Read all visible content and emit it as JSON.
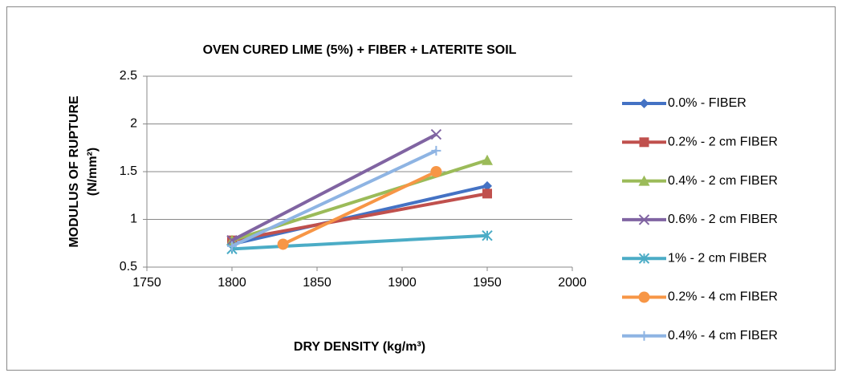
{
  "chart_data": {
    "type": "line",
    "title": "OVEN CURED LIME (5%) + FIBER + LATERITE SOIL",
    "x_label": "DRY DENSITY (kg/m³)",
    "y_label": [
      "MODULUS OF RUPTURE",
      "(N/mm²)"
    ],
    "xlim": [
      1750,
      2000
    ],
    "xticks": [
      1750,
      1800,
      1850,
      1900,
      1950,
      2000
    ],
    "ylim": [
      0.5,
      2.5
    ],
    "yticks": [
      0.5,
      1,
      1.5,
      2,
      2.5
    ],
    "grid": true,
    "legend": "right",
    "series": [
      {
        "name": "0.0% - FIBER",
        "color": "#4472c4",
        "marker": "diamond",
        "x": [
          1800,
          1950
        ],
        "values": [
          0.74,
          1.35
        ]
      },
      {
        "name": "0.2% - 2 cm FIBER",
        "color": "#c0504d",
        "marker": "square",
        "x": [
          1800,
          1950
        ],
        "values": [
          0.78,
          1.27
        ]
      },
      {
        "name": "0.4% - 2 cm FIBER",
        "color": "#9bbb59",
        "marker": "triangle",
        "x": [
          1800,
          1950
        ],
        "values": [
          0.78,
          1.62
        ]
      },
      {
        "name": "0.6% - 2 cm FIBER",
        "color": "#8064a2",
        "marker": "x",
        "x": [
          1800,
          1920
        ],
        "values": [
          0.78,
          1.89
        ]
      },
      {
        "name": "1% - 2 cm FIBER",
        "color": "#4bacc6",
        "marker": "star",
        "x": [
          1800,
          1950
        ],
        "values": [
          0.69,
          0.83
        ]
      },
      {
        "name": "0.2% - 4 cm FIBER",
        "color": "#f79646",
        "marker": "circle",
        "x": [
          1830,
          1920
        ],
        "values": [
          0.74,
          1.5
        ]
      },
      {
        "name": "0.4% - 4 cm FIBER",
        "color": "#8eb4e3",
        "marker": "plus",
        "x": [
          1800,
          1920
        ],
        "values": [
          0.72,
          1.72
        ]
      }
    ]
  }
}
